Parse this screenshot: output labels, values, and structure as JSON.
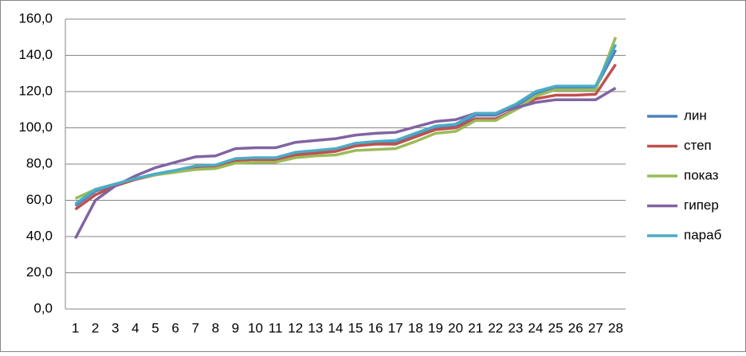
{
  "chart_data": {
    "type": "line",
    "categories": [
      "1",
      "2",
      "3",
      "4",
      "5",
      "6",
      "7",
      "8",
      "9",
      "10",
      "11",
      "12",
      "13",
      "14",
      "15",
      "16",
      "17",
      "18",
      "19",
      "20",
      "21",
      "22",
      "23",
      "24",
      "25",
      "26",
      "27",
      "28"
    ],
    "series": [
      {
        "name": "лин",
        "color": "#4f81bd",
        "values": [
          57,
          65,
          69,
          72,
          74.5,
          76.5,
          78.5,
          79,
          82.5,
          83,
          83,
          86,
          87,
          88,
          91,
          92,
          92,
          96,
          100,
          101,
          107,
          107,
          112,
          119,
          122,
          122,
          122,
          143
        ]
      },
      {
        "name": "степ",
        "color": "#c0504d",
        "values": [
          55,
          63,
          68,
          71.5,
          74,
          76,
          78,
          78.5,
          82,
          82.5,
          82.5,
          85,
          86,
          87,
          90,
          91,
          91,
          95,
          99,
          100,
          105,
          105,
          110,
          116,
          118,
          118,
          118.5,
          135
        ]
      },
      {
        "name": "показ",
        "color": "#9bbb59",
        "values": [
          61,
          66,
          69,
          72,
          74,
          75.5,
          77,
          77.5,
          80.5,
          81,
          81,
          83.5,
          84.5,
          85,
          87.5,
          88,
          88.5,
          92.5,
          97,
          98,
          104,
          104,
          110,
          117.5,
          121,
          121,
          121,
          150
        ]
      },
      {
        "name": "гипер",
        "color": "#8064a2",
        "values": [
          39,
          60,
          68,
          73.5,
          78,
          81,
          84,
          84.5,
          88.5,
          89,
          89,
          92,
          93,
          94,
          96,
          97,
          97.5,
          100.5,
          103.5,
          104.5,
          108,
          108,
          111,
          114,
          115.5,
          115.5,
          115.5,
          122
        ]
      },
      {
        "name": "параб",
        "color": "#4bacc6",
        "values": [
          58,
          66,
          69,
          72,
          74.5,
          76.5,
          79,
          79.5,
          83,
          83.5,
          83.5,
          86.5,
          87.5,
          88.5,
          91.5,
          92.5,
          93,
          97,
          101,
          102,
          108,
          108,
          113,
          120,
          123,
          123,
          123,
          146
        ]
      }
    ],
    "ylim": [
      0,
      160
    ],
    "yticks": [
      {
        "value": 0,
        "label": "0,0"
      },
      {
        "value": 20,
        "label": "20,0"
      },
      {
        "value": 40,
        "label": "40,0"
      },
      {
        "value": 60,
        "label": "60,0"
      },
      {
        "value": 80,
        "label": "80,0"
      },
      {
        "value": 100,
        "label": "100,0"
      },
      {
        "value": 120,
        "label": "120,0"
      },
      {
        "value": 140,
        "label": "140,0"
      },
      {
        "value": 160,
        "label": "160,0"
      }
    ],
    "grid": true,
    "legend": "right"
  }
}
